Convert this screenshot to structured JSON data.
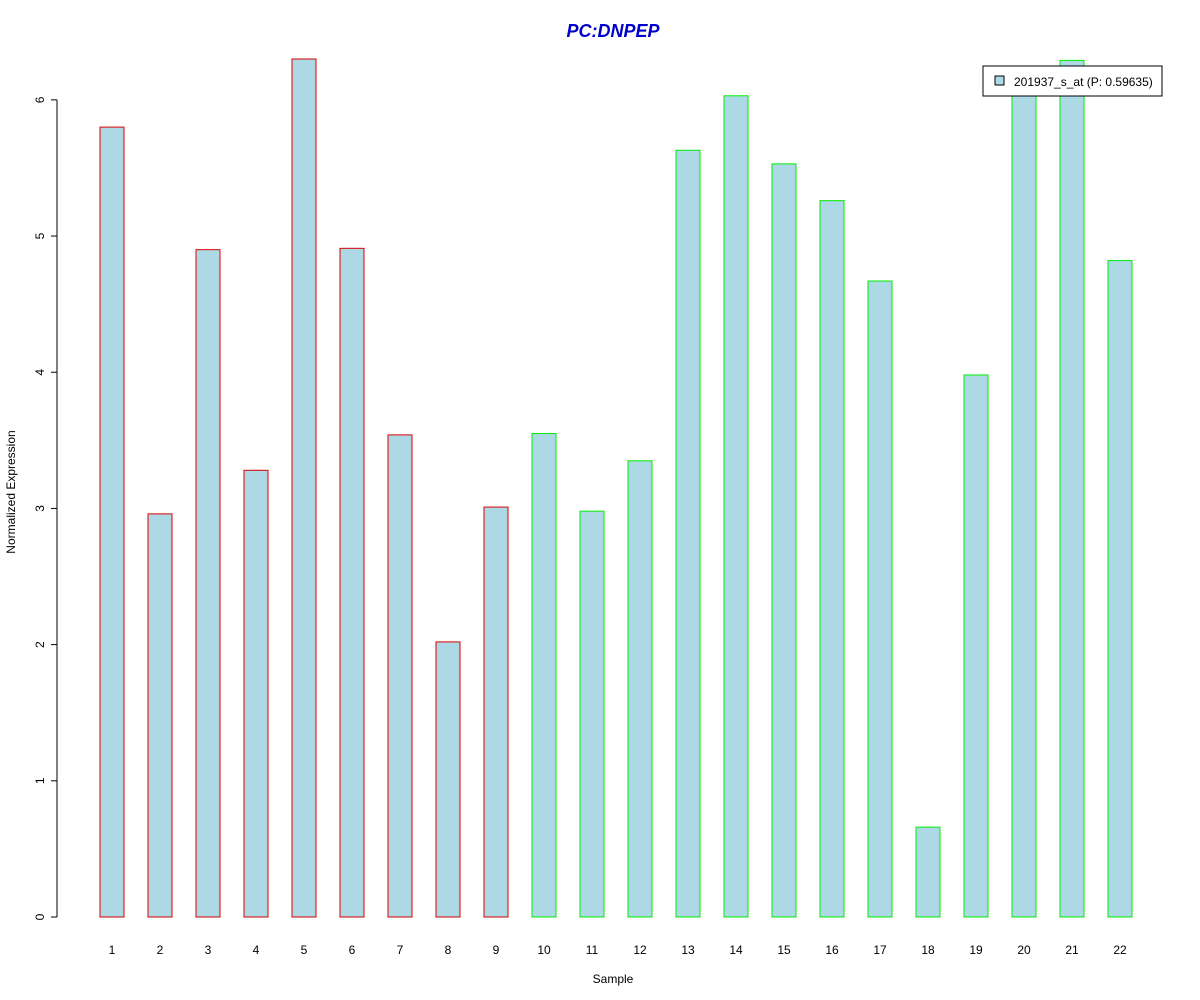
{
  "chart_data": {
    "type": "bar",
    "title": "PC:DNPEP",
    "xlabel": "Sample",
    "ylabel": "Normalized Expression",
    "categories": [
      "1",
      "2",
      "3",
      "4",
      "5",
      "6",
      "7",
      "8",
      "9",
      "10",
      "11",
      "12",
      "13",
      "14",
      "15",
      "16",
      "17",
      "18",
      "19",
      "20",
      "21",
      "22"
    ],
    "series": [
      {
        "name": "201937_s_at (P: 0.59635)",
        "values": [
          5.8,
          2.96,
          4.9,
          3.28,
          6.3,
          4.91,
          3.54,
          2.02,
          3.01,
          3.55,
          2.98,
          3.35,
          5.63,
          6.03,
          5.53,
          5.26,
          4.67,
          0.66,
          3.98,
          6.1,
          6.29,
          4.82
        ]
      }
    ],
    "groups": [
      {
        "samples": [
          1,
          9
        ],
        "border_color": "#dd0000"
      },
      {
        "samples": [
          10,
          22
        ],
        "border_color": "#00ee00"
      }
    ],
    "ylim": [
      0,
      6.3
    ],
    "yticks": [
      "0",
      "1",
      "2",
      "3",
      "4",
      "5",
      "6"
    ],
    "grid": false,
    "legend_position": "top-right",
    "colors": {
      "bar_fill": "#add8e6",
      "title": "#0000cc",
      "axis": "#000000"
    }
  }
}
